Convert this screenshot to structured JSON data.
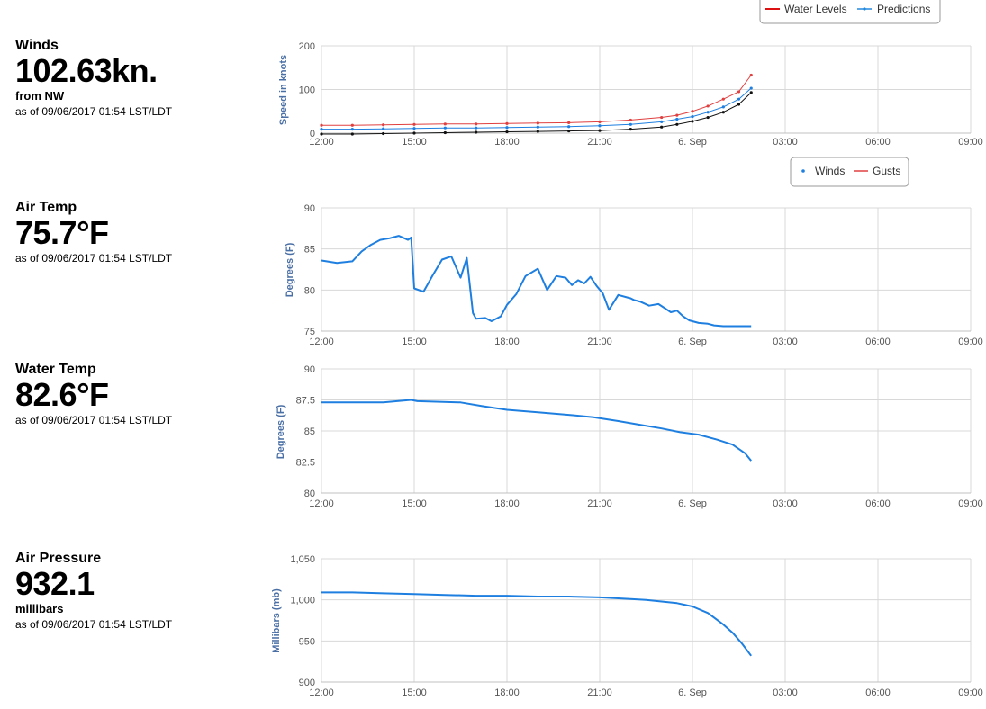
{
  "panels": {
    "winds": {
      "title": "Winds",
      "value": "102.63kn.",
      "sub": "from NW",
      "asof": "as of 09/06/2017 01:54 LST/LDT"
    },
    "airtemp": {
      "title": "Air Temp",
      "value": "75.7°F",
      "asof": "as of 09/06/2017 01:54 LST/LDT"
    },
    "watertemp": {
      "title": "Water Temp",
      "value": "82.6°F",
      "asof": "as of 09/06/2017 01:54 LST/LDT"
    },
    "pressure": {
      "title": "Air Pressure",
      "value": "932.1",
      "sub": "millibars",
      "asof": "as of 09/06/2017 01:54 LST/LDT"
    }
  },
  "legends": {
    "top": [
      {
        "label": "Water Levels",
        "color": "#dd1111"
      },
      {
        "label": "Predictions",
        "color": "#2288dd"
      }
    ],
    "winds": [
      {
        "label": "Winds",
        "color": "#1e7fe0"
      },
      {
        "label": "Gusts",
        "color": "#e04040"
      }
    ]
  },
  "chart_data": [
    {
      "type": "line",
      "ylabel": "Speed in knots",
      "ylim": [
        0,
        200
      ],
      "yticks": [
        "0",
        "100",
        "200"
      ],
      "xticks": [
        "12:00",
        "15:00",
        "18:00",
        "21:00",
        "6. Sep",
        "03:00",
        "06:00",
        "09:00"
      ],
      "x_unit": "hours since 12:00",
      "series": [
        {
          "name": "Gusts",
          "color": "#e04040",
          "x": [
            0,
            1,
            2,
            3,
            4,
            5,
            6,
            7,
            8,
            9,
            10,
            11,
            11.5,
            12,
            12.5,
            13,
            13.5,
            13.9
          ],
          "values": [
            18,
            18,
            19,
            20,
            21,
            21,
            22,
            23,
            24,
            26,
            30,
            36,
            41,
            50,
            62,
            78,
            95,
            133
          ]
        },
        {
          "name": "Winds",
          "color": "#1e7fe0",
          "x": [
            0,
            1,
            2,
            3,
            4,
            5,
            6,
            7,
            8,
            9,
            10,
            11,
            11.5,
            12,
            12.5,
            13,
            13.5,
            13.9
          ],
          "values": [
            9,
            9,
            10,
            11,
            12,
            12,
            13,
            14,
            15,
            17,
            20,
            26,
            32,
            38,
            48,
            60,
            78,
            103
          ]
        },
        {
          "name": "",
          "color": "#111111",
          "x": [
            0,
            1,
            2,
            3,
            4,
            5,
            6,
            7,
            8,
            9,
            10,
            11,
            11.5,
            12,
            12.5,
            13,
            13.5,
            13.9
          ],
          "values": [
            -2,
            -2,
            -1,
            0,
            1,
            2,
            3,
            4,
            5,
            6,
            9,
            14,
            20,
            27,
            36,
            48,
            66,
            93
          ]
        }
      ]
    },
    {
      "type": "line",
      "ylabel": "Degrees (F)",
      "ylim": [
        75,
        90
      ],
      "yticks": [
        "75",
        "80",
        "85",
        "90"
      ],
      "xticks": [
        "12:00",
        "15:00",
        "18:00",
        "21:00",
        "6. Sep",
        "03:00",
        "06:00",
        "09:00"
      ],
      "x_unit": "hours since 12:00",
      "series": [
        {
          "name": "Air Temp",
          "color": "#1e7fe0",
          "x": [
            0,
            0.5,
            1.0,
            1.3,
            1.6,
            1.9,
            2.2,
            2.5,
            2.8,
            2.9,
            3.0,
            3.3,
            3.6,
            3.9,
            4.2,
            4.5,
            4.7,
            4.9,
            5.0,
            5.3,
            5.5,
            5.8,
            6.0,
            6.3,
            6.6,
            7.0,
            7.3,
            7.6,
            7.9,
            8.1,
            8.3,
            8.5,
            8.7,
            8.9,
            9.1,
            9.3,
            9.6,
            9.9,
            10.0,
            10.1,
            10.3,
            10.6,
            10.9,
            11.1,
            11.3,
            11.5,
            11.7,
            11.9,
            12.2,
            12.5,
            12.7,
            13.0,
            13.4,
            13.9
          ],
          "values": [
            83.6,
            83.3,
            83.5,
            84.7,
            85.5,
            86.1,
            86.3,
            86.6,
            86.1,
            86.4,
            80.2,
            79.8,
            81.8,
            83.7,
            84.1,
            81.5,
            83.9,
            77.2,
            76.5,
            76.6,
            76.2,
            76.8,
            78.2,
            79.5,
            81.7,
            82.6,
            80.0,
            81.7,
            81.5,
            80.6,
            81.2,
            80.8,
            81.6,
            80.5,
            79.6,
            77.6,
            79.4,
            79.1,
            79.0,
            78.8,
            78.6,
            78.1,
            78.3,
            77.8,
            77.3,
            77.5,
            76.8,
            76.3,
            76.0,
            75.9,
            75.7,
            75.6,
            75.6,
            75.6
          ]
        }
      ]
    },
    {
      "type": "line",
      "ylabel": "Degrees (F)",
      "ylim": [
        80,
        90
      ],
      "yticks": [
        "80",
        "82.5",
        "85",
        "87.5",
        "90"
      ],
      "xticks": [
        "12:00",
        "15:00",
        "18:00",
        "21:00",
        "6. Sep",
        "03:00",
        "06:00",
        "09:00"
      ],
      "x_unit": "hours since 12:00",
      "series": [
        {
          "name": "Water Temp",
          "color": "#1e7fe0",
          "x": [
            0,
            2.0,
            2.9,
            3.1,
            4.5,
            5.2,
            6.0,
            7.0,
            8.0,
            8.8,
            9.6,
            10.3,
            11.0,
            11.6,
            12.2,
            12.8,
            13.3,
            13.7,
            13.9
          ],
          "values": [
            87.3,
            87.3,
            87.5,
            87.4,
            87.3,
            87.0,
            86.7,
            86.5,
            86.3,
            86.1,
            85.8,
            85.5,
            85.2,
            84.9,
            84.7,
            84.3,
            83.9,
            83.2,
            82.6
          ]
        }
      ]
    },
    {
      "type": "line",
      "ylabel": "Millibars (mb)",
      "ylim": [
        900,
        1050
      ],
      "yticks": [
        "900",
        "950",
        "1,000",
        "1,050"
      ],
      "xticks": [
        "12:00",
        "15:00",
        "18:00",
        "21:00",
        "6. Sep",
        "03:00",
        "06:00",
        "09:00"
      ],
      "x_unit": "hours since 12:00",
      "series": [
        {
          "name": "Air Pressure",
          "color": "#1e7fe0",
          "x": [
            0,
            1,
            2,
            3,
            4,
            5,
            6,
            7,
            8,
            9,
            10,
            10.5,
            11,
            11.5,
            12,
            12.5,
            13,
            13.3,
            13.6,
            13.9
          ],
          "values": [
            1009,
            1009,
            1008,
            1007,
            1006,
            1005,
            1005,
            1004,
            1004,
            1003,
            1001,
            1000,
            998,
            996,
            992,
            984,
            970,
            960,
            947,
            932
          ]
        }
      ]
    }
  ]
}
